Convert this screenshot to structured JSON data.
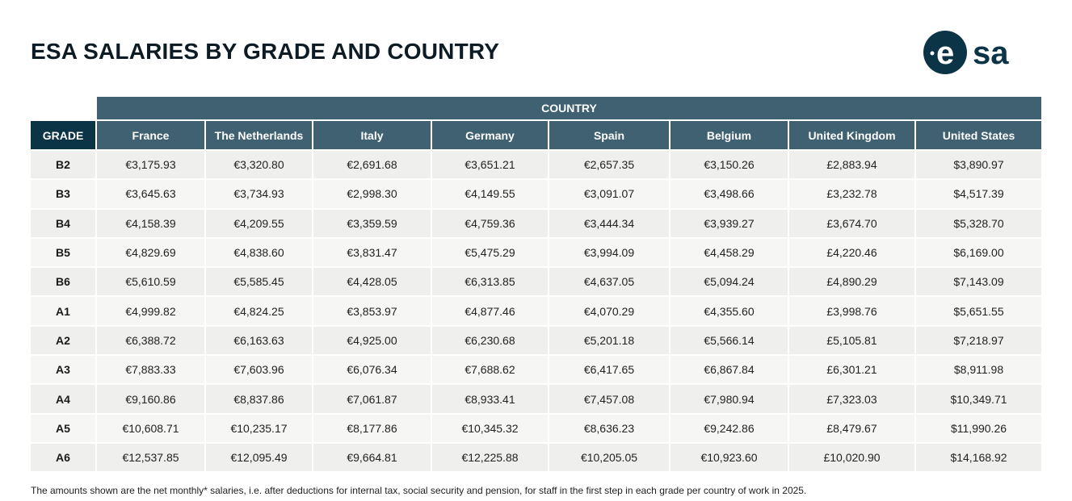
{
  "title": "ESA SALARIES BY GRADE AND COUNTRY",
  "logo": {
    "text": "esa",
    "color": "#0b3447"
  },
  "table": {
    "country_header": "COUNTRY",
    "grade_header": "GRADE",
    "columns": [
      "France",
      "The Netherlands",
      "Italy",
      "Germany",
      "Spain",
      "Belgium",
      "United Kingdom",
      "United States"
    ],
    "rows": [
      {
        "grade": "B2",
        "values": [
          "€3,175.93",
          "€3,320.80",
          "€2,691.68",
          "€3,651.21",
          "€2,657.35",
          "€3,150.26",
          "£2,883.94",
          "$3,890.97"
        ]
      },
      {
        "grade": "B3",
        "values": [
          "€3,645.63",
          "€3,734.93",
          "€2,998.30",
          "€4,149.55",
          "€3,091.07",
          "€3,498.66",
          "£3,232.78",
          "$4,517.39"
        ]
      },
      {
        "grade": "B4",
        "values": [
          "€4,158.39",
          "€4,209.55",
          "€3,359.59",
          "€4,759.36",
          "€3,444.34",
          "€3,939.27",
          "£3,674.70",
          "$5,328.70"
        ]
      },
      {
        "grade": "B5",
        "values": [
          "€4,829.69",
          "€4,838.60",
          "€3,831.47",
          "€5,475.29",
          "€3,994.09",
          "€4,458.29",
          "£4,220.46",
          "$6,169.00"
        ]
      },
      {
        "grade": "B6",
        "values": [
          "€5,610.59",
          "€5,585.45",
          "€4,428.05",
          "€6,313.85",
          "€4,637.05",
          "€5,094.24",
          "£4,890.29",
          "$7,143.09"
        ]
      },
      {
        "grade": "A1",
        "values": [
          "€4,999.82",
          "€4,824.25",
          "€3,853.97",
          "€4,877.46",
          "€4,070.29",
          "€4,355.60",
          "£3,998.76",
          "$5,651.55"
        ]
      },
      {
        "grade": "A2",
        "values": [
          "€6,388.72",
          "€6,163.63",
          "€4,925.00",
          "€6,230.68",
          "€5,201.18",
          "€5,566.14",
          "£5,105.81",
          "$7,218.97"
        ]
      },
      {
        "grade": "A3",
        "values": [
          "€7,883.33",
          "€7,603.96",
          "€6,076.34",
          "€7,688.62",
          "€6,417.65",
          "€6,867.84",
          "£6,301.21",
          "$8,911.98"
        ]
      },
      {
        "grade": "A4",
        "values": [
          "€9,160.86",
          "€8,837.86",
          "€7,061.87",
          "€8,933.41",
          "€7,457.08",
          "€7,980.94",
          "£7,323.03",
          "$10,349.71"
        ]
      },
      {
        "grade": "A5",
        "values": [
          "€10,608.71",
          "€10,235.17",
          "€8,177.86",
          "€10,345.32",
          "€8,636.23",
          "€9,242.86",
          "£8,479.67",
          "$11,990.26"
        ]
      },
      {
        "grade": "A6",
        "values": [
          "€12,537.85",
          "€12,095.49",
          "€9,664.81",
          "€12,225.88",
          "€10,205.05",
          "€10,923.60",
          "£10,020.90",
          "$14,168.92"
        ]
      }
    ]
  },
  "footnote": "The amounts shown are the net monthly* salaries, i.e. after deductions for internal tax, social security and pension, for staff in the first step in each grade per country of work in 2025."
}
